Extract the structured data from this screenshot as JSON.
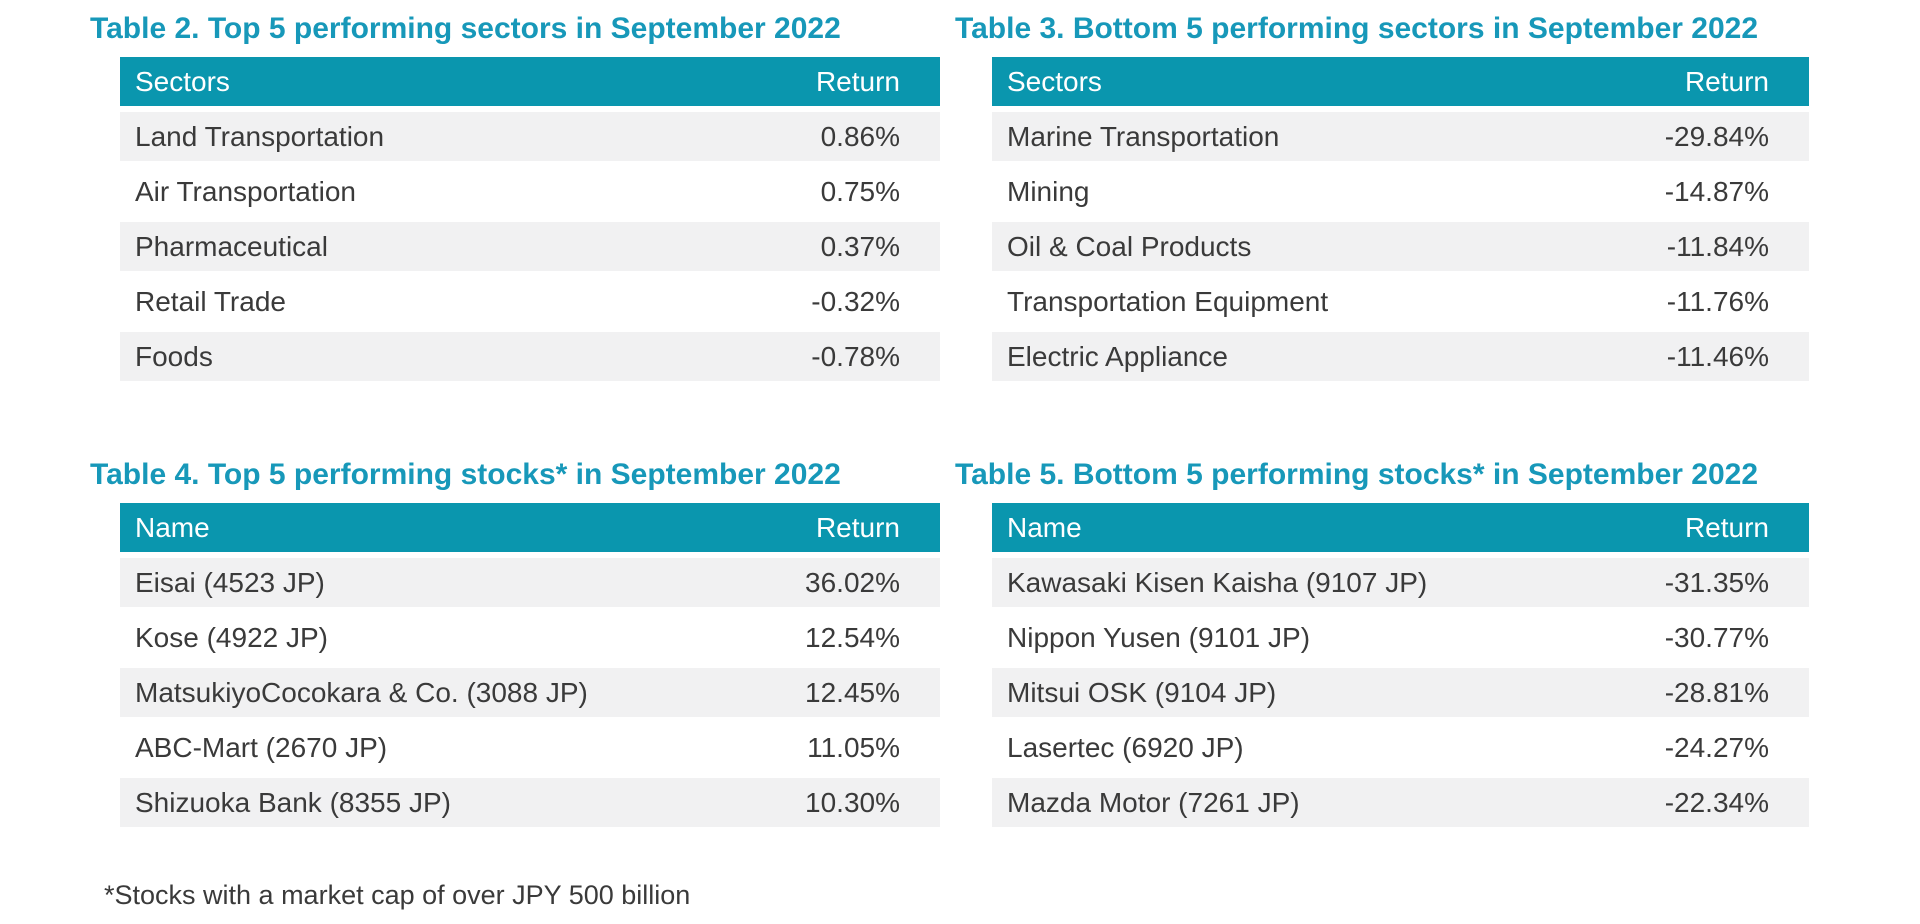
{
  "colors": {
    "title_teal": "#1798B9",
    "header_teal": "#0A96AE",
    "stripe_gray": "#F1F1F2",
    "body_text": "#3A3A3A"
  },
  "tables": [
    {
      "title": "Table 2. Top 5 performing sectors in September 2022",
      "col1": "Sectors",
      "col2": "Return",
      "rows": [
        [
          "Land Transportation",
          "0.86%"
        ],
        [
          "Air Transportation",
          "0.75%"
        ],
        [
          "Pharmaceutical",
          "0.37%"
        ],
        [
          "Retail Trade",
          "-0.32%"
        ],
        [
          "Foods",
          "-0.78%"
        ]
      ]
    },
    {
      "title": "Table 3. Bottom 5 performing sectors in September 2022",
      "col1": "Sectors",
      "col2": "Return",
      "rows": [
        [
          "Marine Transportation",
          "-29.84%"
        ],
        [
          "Mining",
          "-14.87%"
        ],
        [
          "Oil & Coal Products",
          "-11.84%"
        ],
        [
          "Transportation Equipment",
          "-11.76%"
        ],
        [
          "Electric Appliance",
          "-11.46%"
        ]
      ]
    },
    {
      "title": "Table 4. Top 5 performing stocks* in September 2022",
      "col1": "Name",
      "col2": "Return",
      "rows": [
        [
          "Eisai (4523 JP)",
          "36.02%"
        ],
        [
          "Kose (4922 JP)",
          "12.54%"
        ],
        [
          "MatsukiyoCocokara & Co. (3088 JP)",
          "12.45%"
        ],
        [
          "ABC-Mart (2670 JP)",
          "11.05%"
        ],
        [
          "Shizuoka Bank (8355 JP)",
          "10.30%"
        ]
      ]
    },
    {
      "title": "Table 5. Bottom 5 performing stocks* in September 2022",
      "col1": "Name",
      "col2": "Return",
      "rows": [
        [
          "Kawasaki Kisen Kaisha (9107 JP)",
          "-31.35%"
        ],
        [
          "Nippon Yusen (9101 JP)",
          "-30.77%"
        ],
        [
          "Mitsui OSK (9104 JP)",
          "-28.81%"
        ],
        [
          "Lasertec (6920 JP)",
          "-24.27%"
        ],
        [
          "Mazda Motor (7261 JP)",
          "-22.34%"
        ]
      ]
    }
  ],
  "footnote": "*Stocks with a market cap of over JPY 500 billion"
}
